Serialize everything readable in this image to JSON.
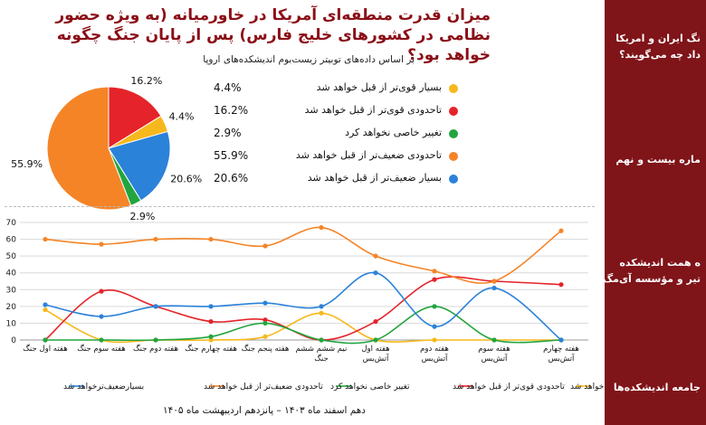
{
  "header": {
    "title": "میزان قدرت منطقه‌ای آمریکا در خاورمیانه (به ویژه حضور نظامی در کشورهای خلیج فارس) پس از پایان جنگ چگونه خواهد بود؟",
    "subtitle": "بر اساس داده‌های توبیتر زیست‌بوم اندیشکده‌های اروپا"
  },
  "sidebar": {
    "items": [
      {
        "label": "نگ ایران و امریکا\nداد چه می‌گویند؟"
      },
      {
        "label": "ماره بیست و نهم"
      },
      {
        "label": "ه همت اندیشکده\nتیر و مؤسسه آی‌مگ"
      },
      {
        "label": "جامعه اندیشکده‌ها"
      }
    ]
  },
  "footer": {
    "date_range": "دهم اسفند ماه ۱۴۰۳ – پانزدهم اردیبهشت ماه ۱۴۰۵"
  },
  "colors": {
    "very_strong": "#f6b81c",
    "somewhat_stronger": "#e5232a",
    "no_change": "#22a53f",
    "somewhat_weaker": "#f58427",
    "much_weaker": "#2b82d9",
    "sidebar_bg": "#7f1419",
    "title": "#8b0f17"
  },
  "chart_data": [
    {
      "type": "pie",
      "labels": [
        "بسیار قوی‌تر از قبل خواهد شد",
        "تاحدودی قوی‌تر از قبل خواهد شد",
        "تغییر خاصی نخواهد کرد",
        "تاحدودی ضعیف‌تر از قبل خواهد شد",
        "بسیار ضعیف‌تر از قبل خواهد شد"
      ],
      "values": [
        4.4,
        16.2,
        2.9,
        55.9,
        20.6
      ],
      "value_labels": [
        "4.4%",
        "16.2%",
        "2.9%",
        "55.9%",
        "20.6%"
      ]
    },
    {
      "type": "line",
      "categories": [
        "هفته اول جنگ",
        "هفته سوم جنگ",
        "هفته دوم جنگ",
        "هفته چهارم جنگ",
        "هفته پنجم جنگ",
        "نیم ششم ششم جنگ",
        "هفته اول آتش‌بس",
        "هفته دوم آتش‌بس",
        "هفته سوم آتش‌بس",
        "هفته چهارم آتش‌بس"
      ],
      "category_lines": [
        [
          "هفته اول جنگ"
        ],
        [
          "هفته سوم جنگ"
        ],
        [
          "هفته دوم جنگ"
        ],
        [
          "هفته چهارم جنگ"
        ],
        [
          "هفته پنجم جنگ"
        ],
        [
          "نیم ششم ششم",
          "جنگ"
        ],
        [
          "هفته اول",
          "آتش‌بس"
        ],
        [
          "هفته دوم",
          "آتش‌بس"
        ],
        [
          "هفته سوم",
          "آتش‌بس"
        ],
        [
          "هفته چهارم",
          "آتش‌بس"
        ]
      ],
      "ylim": [
        0,
        70
      ],
      "yticks": [
        0,
        10,
        20,
        30,
        40,
        50,
        60,
        70
      ],
      "grid": true,
      "legend_position": "bottom",
      "series": [
        {
          "name": "بسیار قوی‌تر از قبل خواهد شد",
          "key": "very_strong",
          "values": [
            18,
            0,
            0,
            0,
            2,
            16,
            0,
            0,
            0,
            0
          ]
        },
        {
          "name": "تاحدودی قوی‌تر از قبل خواهد شد",
          "key": "somewhat_stronger",
          "values": [
            0,
            29,
            20,
            11,
            12,
            0,
            11,
            36,
            35,
            33
          ]
        },
        {
          "name": "تغییر خاصی نخواهد کرد",
          "key": "no_change",
          "values": [
            0,
            0,
            0,
            2,
            10,
            0,
            0,
            20,
            0,
            0
          ]
        },
        {
          "name": "تاحدودی ضعیف‌تر از قبل خواهد شد",
          "key": "somewhat_weaker",
          "values": [
            60,
            57,
            60,
            60,
            56,
            67,
            50,
            41,
            35,
            65
          ]
        },
        {
          "name": "بسیار ضعیف‌تر از قبل خواهد شد",
          "key": "much_weaker",
          "values": [
            21,
            14,
            20,
            20,
            22,
            20,
            40,
            8,
            31,
            0
          ]
        }
      ],
      "legend_labels": [
        "بسیار قوی‌تر از قبل خواهد شد",
        "تاحدودی قوی‌تر از قبل خواهد شد",
        "تغییر خاصی نخواهد کرد",
        "تاحدودی ضعیف‌تر از قبل خواهد شد",
        "بسیارضعیف‌ترخواهد شد"
      ]
    }
  ]
}
